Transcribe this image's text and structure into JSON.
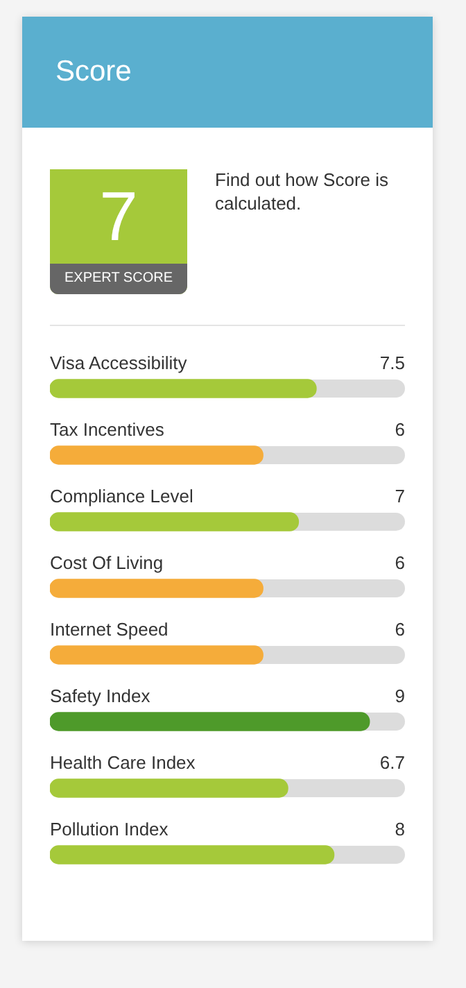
{
  "chart_data": {
    "type": "bar",
    "orientation": "horizontal",
    "title": "Score",
    "annotations": [
      "7",
      "EXPERT SCORE",
      "Find out how Score is calculated."
    ],
    "categories": [
      "Visa Accessibility",
      "Tax Incentives",
      "Compliance Level",
      "Cost Of Living",
      "Internet Speed",
      "Safety Index",
      "Health Care Index",
      "Pollution Index"
    ],
    "values": [
      7.5,
      6,
      7,
      6,
      6,
      9,
      6.7,
      8
    ],
    "colors": [
      "#a5c93a",
      "#f5ac3a",
      "#a5c93a",
      "#f5ac3a",
      "#f5ac3a",
      "#4e9a2a",
      "#a5c93a",
      "#a5c93a"
    ],
    "xlim": [
      0,
      10
    ],
    "data_labels": true
  }
}
